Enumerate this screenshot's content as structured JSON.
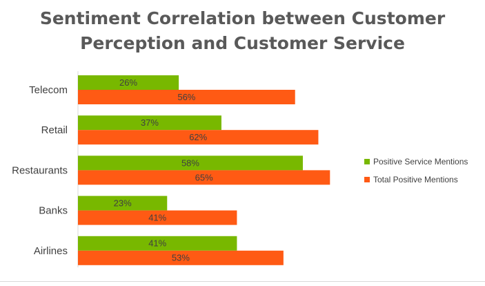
{
  "colors": {
    "series_positive_service": "#78b800",
    "series_total_positive": "#ff5a14",
    "axis": "#d9d9d9",
    "text": "#404040",
    "title": "#595959"
  },
  "chart_data": {
    "type": "bar",
    "orientation": "horizontal",
    "title": [
      "Sentiment Correlation between Customer",
      "Perception and Customer Service"
    ],
    "categories": [
      "Telecom",
      "Retail",
      "Restaurants",
      "Banks",
      "Airlines"
    ],
    "series": [
      {
        "name": "Positive Service Mentions",
        "values": [
          26,
          37,
          58,
          23,
          41
        ],
        "labels": [
          "26%",
          "37%",
          "58%",
          "23%",
          "41%"
        ]
      },
      {
        "name": "Total Positive Mentions",
        "values": [
          56,
          62,
          65,
          41,
          53
        ],
        "labels": [
          "56%",
          "62%",
          "65%",
          "41%",
          "53%"
        ]
      }
    ],
    "xlim": [
      0,
      100
    ],
    "xlabel": "",
    "ylabel": "",
    "grid": false,
    "legend": "right"
  }
}
